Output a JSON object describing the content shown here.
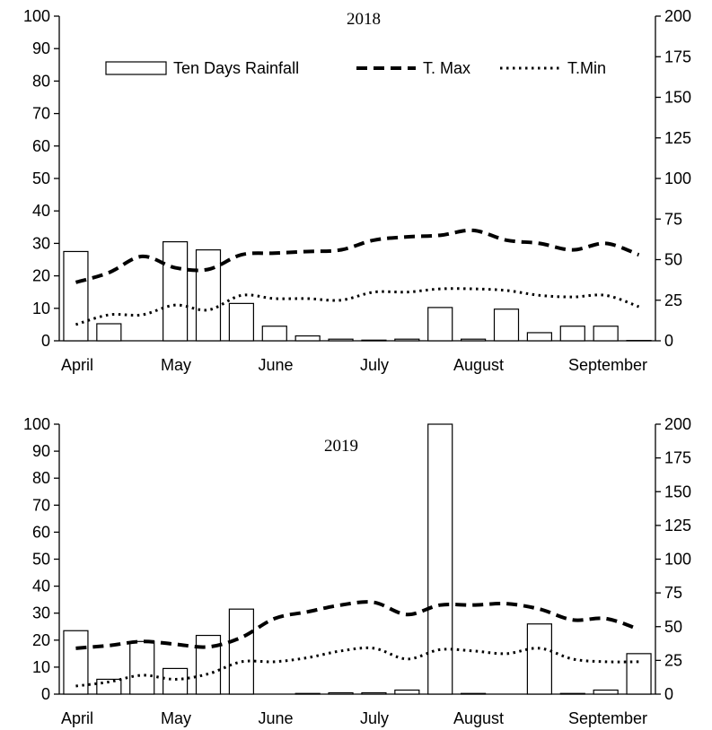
{
  "chart_data": [
    {
      "type": "bar",
      "title": "2018",
      "xlabel": "",
      "ylabel": "",
      "y2label": "",
      "x_tick_labels": [
        "April",
        "May",
        "June",
        "July",
        "August",
        "September"
      ],
      "ylim": [
        0,
        100
      ],
      "y_ticks": [
        0,
        10,
        20,
        30,
        40,
        50,
        60,
        70,
        80,
        90,
        100
      ],
      "y2lim": [
        0,
        200
      ],
      "y2_ticks": [
        0,
        25,
        50,
        75,
        100,
        125,
        150,
        175,
        200
      ],
      "legend": {
        "placement": "top",
        "entries": [
          "Ten Days Rainfall",
          "T. Max",
          "T.Min"
        ]
      },
      "series": [
        {
          "name": "Ten Days Rainfall",
          "kind": "bar",
          "axis": "right",
          "values": [
            55,
            10.5,
            0,
            61,
            56,
            23,
            9,
            3,
            1,
            0.4,
            1,
            20.5,
            1,
            19.5,
            5,
            9,
            9,
            0.2
          ]
        },
        {
          "name": "T. Max",
          "kind": "line",
          "style": "dashed",
          "axis": "left",
          "values": [
            18,
            21,
            26,
            22.5,
            22,
            26.5,
            27,
            27.5,
            28,
            31,
            32,
            32.5,
            34,
            31,
            30,
            28,
            30,
            26.5
          ]
        },
        {
          "name": "T.Min",
          "kind": "line",
          "style": "dotted",
          "axis": "left",
          "values": [
            5,
            8,
            8,
            11,
            9.5,
            14,
            13,
            13,
            12.5,
            15,
            15,
            16,
            16,
            15.5,
            14,
            13.5,
            14,
            10.5
          ]
        }
      ]
    },
    {
      "type": "bar",
      "title": "2019",
      "xlabel": "",
      "ylabel": "",
      "y2label": "",
      "x_tick_labels": [
        "April",
        "May",
        "June",
        "July",
        "August",
        "September"
      ],
      "ylim": [
        0,
        100
      ],
      "y_ticks": [
        0,
        10,
        20,
        30,
        40,
        50,
        60,
        70,
        80,
        90,
        100
      ],
      "y2lim": [
        0,
        200
      ],
      "y2_ticks": [
        0,
        25,
        50,
        75,
        100,
        125,
        150,
        175,
        200
      ],
      "series": [
        {
          "name": "Ten Days Rainfall",
          "kind": "bar",
          "axis": "right",
          "values": [
            47,
            11,
            39,
            19,
            43.5,
            63,
            0,
            0.5,
            1,
            1,
            3,
            200,
            0.5,
            0,
            52,
            0.5,
            3,
            30
          ]
        },
        {
          "name": "T. Max",
          "kind": "line",
          "style": "dashed",
          "axis": "left",
          "values": [
            17,
            18,
            19.5,
            18.5,
            17.5,
            21,
            28,
            30.5,
            33,
            34,
            29.5,
            33,
            33,
            33.5,
            31.5,
            27.5,
            28,
            24
          ]
        },
        {
          "name": "T.Min",
          "kind": "line",
          "style": "dotted",
          "axis": "left",
          "values": [
            3,
            4.5,
            7,
            5.5,
            7.5,
            12,
            12,
            13.5,
            16,
            17,
            13,
            16.5,
            16,
            15,
            17,
            13,
            12,
            12
          ]
        }
      ]
    }
  ]
}
